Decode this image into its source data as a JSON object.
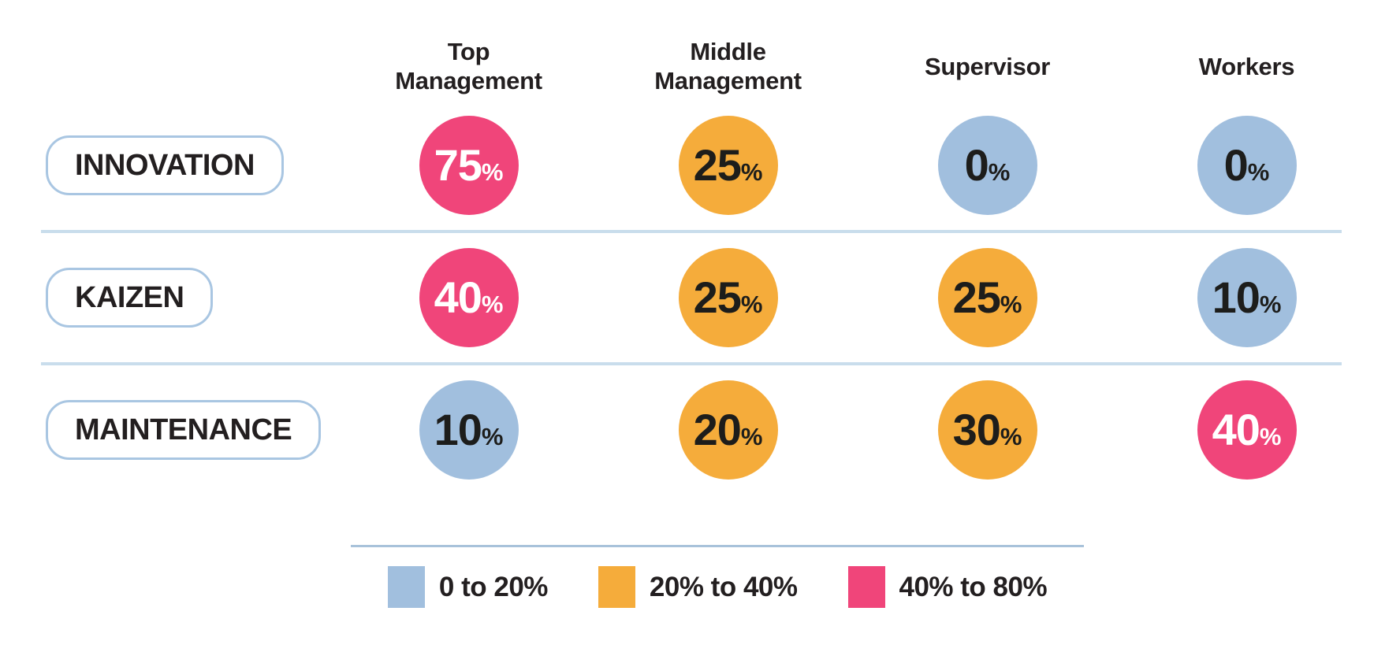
{
  "palette": {
    "blue": "#A1BFDE",
    "orange": "#F5AC3B",
    "pink": "#F0457A",
    "divider": "#C9DDEC",
    "pill_border": "#A9C6E2",
    "text_dark": "#231F20",
    "circle_text_light": "#FFFFFF"
  },
  "columns": [
    {
      "label": "Top Management"
    },
    {
      "label": "Middle Management"
    },
    {
      "label": "Supervisor"
    },
    {
      "label": "Workers"
    }
  ],
  "rows": [
    {
      "label": "INNOVATION",
      "cells": [
        {
          "display": "75",
          "suffix": "%",
          "bg": "#F0457A",
          "fg": "#FFFFFF"
        },
        {
          "display": "25",
          "suffix": "%",
          "bg": "#F5AC3B",
          "fg": "#1D1D1B"
        },
        {
          "display": "0",
          "suffix": "%",
          "bg": "#A1BFDE",
          "fg": "#1D1D1B"
        },
        {
          "display": "0",
          "suffix": "%",
          "bg": "#A1BFDE",
          "fg": "#1D1D1B"
        }
      ]
    },
    {
      "label": "KAIZEN",
      "cells": [
        {
          "display": "40",
          "suffix": "%",
          "bg": "#F0457A",
          "fg": "#FFFFFF"
        },
        {
          "display": "25",
          "suffix": "%",
          "bg": "#F5AC3B",
          "fg": "#1D1D1B"
        },
        {
          "display": "25",
          "suffix": "%",
          "bg": "#F5AC3B",
          "fg": "#1D1D1B"
        },
        {
          "display": "10",
          "suffix": "%",
          "bg": "#A1BFDE",
          "fg": "#1D1D1B"
        }
      ]
    },
    {
      "label": "MAINTENANCE",
      "cells": [
        {
          "display": "10",
          "suffix": "%",
          "bg": "#A1BFDE",
          "fg": "#1D1D1B"
        },
        {
          "display": "20",
          "suffix": "%",
          "bg": "#F5AC3B",
          "fg": "#1D1D1B"
        },
        {
          "display": "30",
          "suffix": "%",
          "bg": "#F5AC3B",
          "fg": "#1D1D1B"
        },
        {
          "display": "40",
          "suffix": "%",
          "bg": "#F0457A",
          "fg": "#FFFFFF"
        }
      ]
    }
  ],
  "legend": {
    "items": [
      {
        "label": "0 to 20%",
        "color": "#A1BFDE"
      },
      {
        "label": "20% to 40%",
        "color": "#F5AC3B"
      },
      {
        "label": "40% to 80%",
        "color": "#F0457A"
      }
    ]
  },
  "chart_data": {
    "type": "heatmap",
    "columns": [
      "Top Management",
      "Middle Management",
      "Supervisor",
      "Workers"
    ],
    "rows": [
      "INNOVATION",
      "KAIZEN",
      "MAINTENANCE"
    ],
    "values_percent": [
      [
        75,
        25,
        0,
        0
      ],
      [
        40,
        25,
        25,
        10
      ],
      [
        10,
        20,
        30,
        40
      ]
    ],
    "value_unit": "%",
    "color_buckets": [
      {
        "range": "0 to 20%",
        "color": "#A1BFDE"
      },
      {
        "range": "20% to 40%",
        "color": "#F5AC3B"
      },
      {
        "range": "40% to 80%",
        "color": "#F0457A"
      }
    ],
    "legend_position": "bottom"
  }
}
